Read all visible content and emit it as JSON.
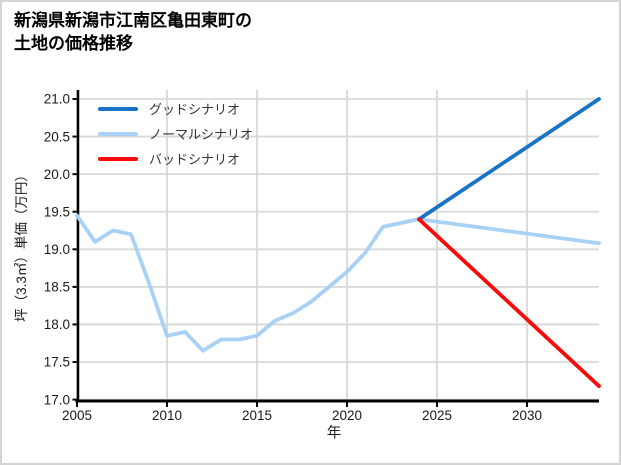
{
  "title": "新潟県新潟市江南区亀田東町の\n土地の価格推移",
  "chart_data": {
    "type": "line",
    "title": "新潟県新潟市江南区亀田東町の土地の価格推移",
    "xlabel": "年",
    "ylabel": "坪（3.3㎡）単価（万円）",
    "xlim": [
      2005,
      2034
    ],
    "ylim": [
      17.0,
      21.0
    ],
    "x_ticks": [
      "2005",
      "2010",
      "2015",
      "2020",
      "2025",
      "2030"
    ],
    "y_ticks": [
      "17.0",
      "17.5",
      "18.0",
      "18.5",
      "19.0",
      "19.5",
      "20.0",
      "20.5",
      "21.0"
    ],
    "grid": true,
    "legend_position": "upper-left",
    "grid_color": "#d9d9d9",
    "axis_color": "#000000",
    "tick_label_color": "#1a1a1a",
    "series": [
      {
        "name": "グッドシナリオ",
        "color": "#1a74c4",
        "x": [
          2024,
          2034
        ],
        "y": [
          19.4,
          21.0
        ]
      },
      {
        "name": "ノーマルシナリオ",
        "color": "#a9d1f5",
        "x": [
          2005,
          2006,
          2007,
          2008,
          2009,
          2010,
          2011,
          2012,
          2013,
          2014,
          2015,
          2016,
          2017,
          2018,
          2019,
          2020,
          2021,
          2022,
          2023,
          2024,
          2034
        ],
        "y": [
          19.45,
          19.1,
          19.25,
          19.2,
          18.55,
          17.85,
          17.9,
          17.65,
          17.8,
          17.8,
          17.85,
          18.05,
          18.15,
          18.3,
          18.5,
          18.7,
          18.95,
          19.3,
          19.35,
          19.4,
          19.08
        ]
      },
      {
        "name": "バッドシナリオ",
        "color": "#fa0a0a",
        "x": [
          2024,
          2034
        ],
        "y": [
          19.4,
          17.18
        ]
      }
    ]
  }
}
